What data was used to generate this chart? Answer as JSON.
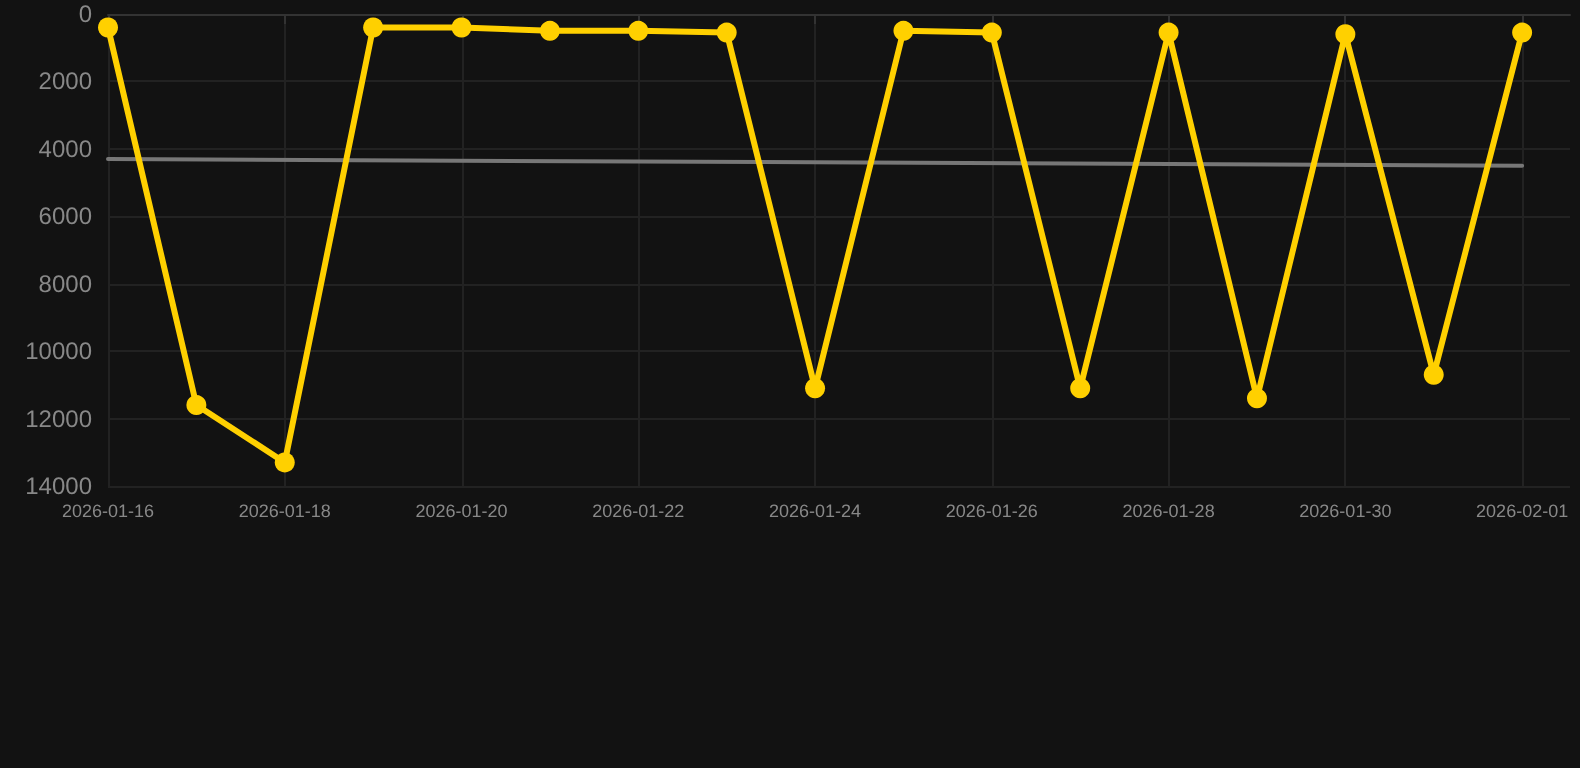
{
  "chart_data": {
    "type": "line",
    "x": [
      "2026-01-16",
      "2026-01-17",
      "2026-01-18",
      "2026-01-19",
      "2026-01-20",
      "2026-01-21",
      "2026-01-22",
      "2026-01-23",
      "2026-01-24",
      "2026-01-25",
      "2026-01-26",
      "2026-01-27",
      "2026-01-28",
      "2026-01-29",
      "2026-01-30",
      "2026-01-31",
      "2026-02-01"
    ],
    "series": [
      {
        "color": "#ffd000",
        "values": [
          400,
          11600,
          13300,
          400,
          400,
          500,
          500,
          550,
          11100,
          500,
          550,
          11100,
          550,
          11400,
          600,
          10700,
          550
        ]
      },
      {
        "type": "line",
        "color": "#777777",
        "marker": "none",
        "x": [
          "2026-01-16",
          "2026-02-01"
        ],
        "values": [
          4300,
          4500
        ]
      }
    ],
    "xlim": [
      "2026-01-16",
      "2026-02-01T13:00"
    ],
    "xticks": [
      "2026-01-16",
      "2026-01-18",
      "2026-01-20",
      "2026-01-22",
      "2026-01-24",
      "2026-01-26",
      "2026-01-28",
      "2026-01-30",
      "2026-02-01"
    ],
    "ylim": [
      14000,
      0
    ],
    "yticks": [
      0,
      2000,
      4000,
      6000,
      8000,
      10000,
      12000,
      14000
    ],
    "grid": true,
    "marker": "circle",
    "line_style": "solid"
  }
}
